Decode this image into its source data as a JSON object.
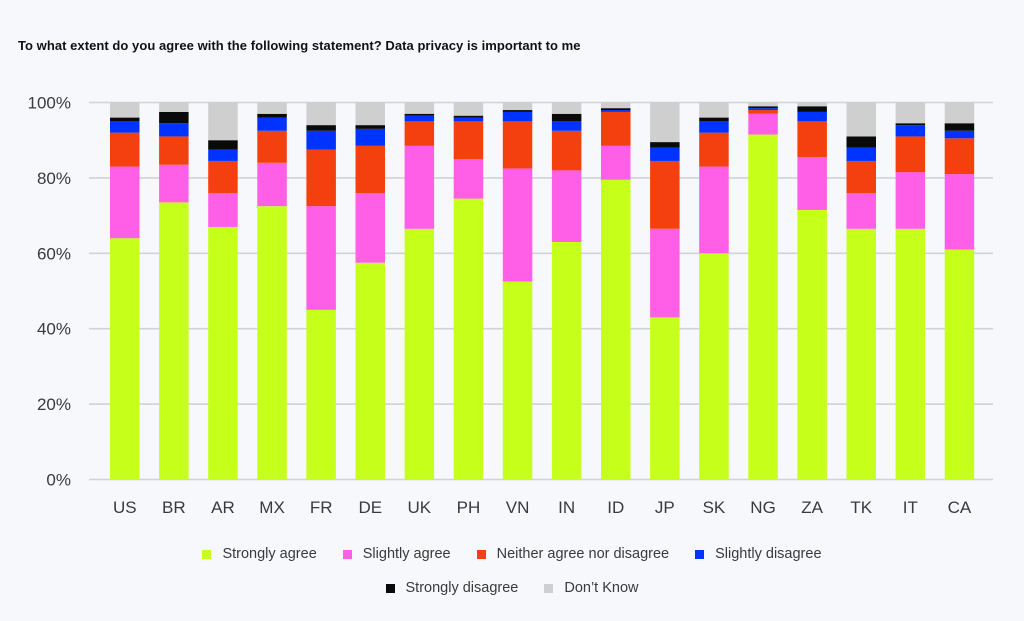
{
  "chart_data": {
    "type": "bar",
    "stacked": true,
    "title": "To what extent do you agree with the following statement? Data privacy is important to me",
    "xlabel": "",
    "ylabel": "",
    "ylim": [
      0,
      100
    ],
    "yticks": [
      "0%",
      "20%",
      "40%",
      "60%",
      "80%",
      "100%"
    ],
    "ytick_values": [
      0,
      20,
      40,
      60,
      80,
      100
    ],
    "grid": true,
    "legend_position": "bottom",
    "categories": [
      "US",
      "BR",
      "AR",
      "MX",
      "FR",
      "DE",
      "UK",
      "PH",
      "VN",
      "IN",
      "ID",
      "JP",
      "SK",
      "NG",
      "ZA",
      "TK",
      "IT",
      "CA"
    ],
    "series": [
      {
        "name": "Strongly agree",
        "color": "#C6FF1A",
        "values": [
          64,
          73.5,
          67,
          72.5,
          45,
          57.5,
          66.5,
          74.5,
          52.5,
          63,
          79.5,
          43,
          60,
          91.5,
          71.5,
          66.5,
          66.5,
          61
        ]
      },
      {
        "name": "Slightly agree",
        "color": "#FF5FE6",
        "values": [
          19,
          10,
          9,
          11.5,
          27.5,
          18.5,
          22,
          10.5,
          30,
          19,
          9,
          23.5,
          23,
          5.5,
          14,
          9.5,
          15,
          20
        ]
      },
      {
        "name": "Neither agree nor disagree",
        "color": "#F4400E",
        "values": [
          9,
          7.5,
          8.5,
          8.5,
          15,
          12.5,
          6.5,
          10,
          12.5,
          10.5,
          9,
          18,
          9,
          1,
          9.5,
          8.5,
          9.5,
          9.5
        ]
      },
      {
        "name": "Slightly disagree",
        "color": "#0033FF",
        "values": [
          3,
          3.5,
          3,
          3.5,
          5,
          4.5,
          1.5,
          1,
          2.5,
          2.5,
          0.5,
          3.5,
          3,
          0.5,
          2.5,
          3.5,
          3,
          2
        ]
      },
      {
        "name": "Strongly disagree",
        "color": "#0A0A0A",
        "values": [
          1,
          3,
          2.5,
          1,
          1.5,
          1,
          0.5,
          0.5,
          0.5,
          2,
          0.5,
          1.5,
          1,
          0.5,
          1.5,
          3,
          0.5,
          2
        ]
      },
      {
        "name": "Don't Know",
        "color": "#CFCFCF",
        "values": [
          4,
          2.5,
          10,
          3,
          6,
          6,
          3,
          3.5,
          2,
          3,
          1.5,
          10.5,
          4,
          1,
          1,
          9,
          5.5,
          5.5
        ]
      }
    ]
  },
  "legend": {
    "row1": [
      {
        "label": "Strongly agree",
        "color": "#C6FF1A"
      },
      {
        "label": "Slightly agree",
        "color": "#FF5FE6"
      },
      {
        "label": "Neither agree nor disagree",
        "color": "#F4400E"
      },
      {
        "label": "Slightly disagree",
        "color": "#0033FF"
      }
    ],
    "row2": [
      {
        "label": "Strongly disagree",
        "color": "#0A0A0A"
      },
      {
        "label": "Don’t Know",
        "color": "#CFCFCF"
      }
    ]
  }
}
